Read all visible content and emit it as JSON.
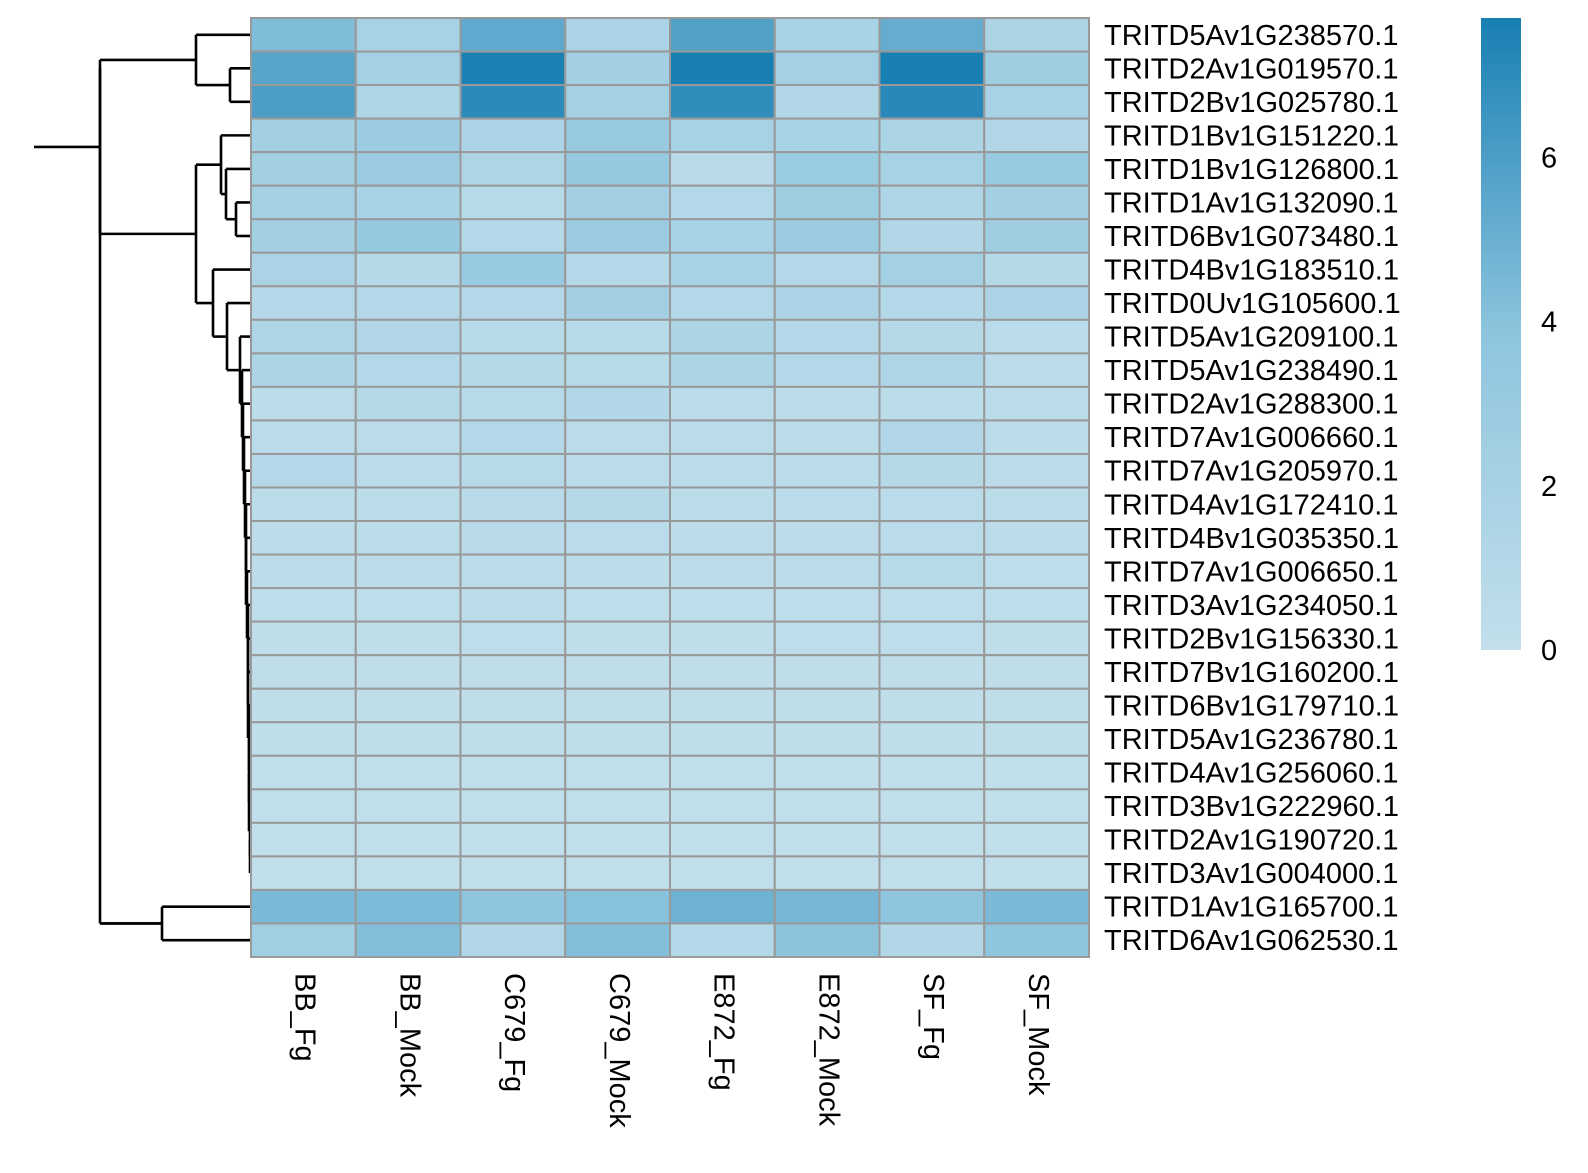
{
  "chart_data": {
    "type": "heatmap",
    "title": "",
    "xlabel": "",
    "ylabel": "",
    "columns": [
      "BB_Fg",
      "BB_Mock",
      "C679_Fg",
      "C679_Mock",
      "E872_Fg",
      "E872_Mock",
      "SF_Fg",
      "SF_Mock"
    ],
    "rows": [
      "TRITD5Av1G238570.1",
      "TRITD2Av1G019570.1",
      "TRITD2Bv1G025780.1",
      "TRITD1Bv1G151220.1",
      "TRITD1Bv1G126800.1",
      "TRITD1Av1G132090.1",
      "TRITD6Bv1G073480.1",
      "TRITD4Bv1G183510.1",
      "TRITD0Uv1G105600.1",
      "TRITD5Av1G209100.1",
      "TRITD5Av1G238490.1",
      "TRITD2Av1G288300.1",
      "TRITD7Av1G006660.1",
      "TRITD7Av1G205970.1",
      "TRITD4Av1G172410.1",
      "TRITD4Bv1G035350.1",
      "TRITD7Av1G006650.1",
      "TRITD3Av1G234050.1",
      "TRITD2Bv1G156330.1",
      "TRITD7Bv1G160200.1",
      "TRITD6Bv1G179710.1",
      "TRITD5Av1G236780.1",
      "TRITD4Av1G256060.1",
      "TRITD3Bv1G222960.1",
      "TRITD2Av1G190720.1",
      "TRITD3Av1G004000.1",
      "TRITD1Av1G165700.1",
      "TRITD6Av1G062530.1"
    ],
    "values": [
      [
        4.3,
        2.0,
        5.4,
        1.8,
        5.8,
        1.9,
        5.2,
        1.7
      ],
      [
        5.6,
        2.2,
        7.6,
        2.3,
        7.7,
        2.2,
        7.7,
        2.6
      ],
      [
        6.0,
        1.4,
        7.1,
        2.2,
        6.9,
        1.2,
        7.2,
        2.0
      ],
      [
        2.4,
        2.8,
        1.6,
        3.2,
        2.0,
        1.9,
        1.7,
        1.3
      ],
      [
        2.3,
        2.9,
        1.5,
        3.3,
        0.7,
        3.0,
        2.0,
        3.1
      ],
      [
        2.2,
        1.9,
        0.8,
        2.4,
        1.1,
        2.7,
        1.4,
        2.4
      ],
      [
        2.3,
        3.3,
        1.0,
        2.9,
        1.9,
        2.8,
        1.2,
        2.6
      ],
      [
        1.8,
        0.9,
        3.1,
        1.0,
        2.0,
        1.0,
        2.2,
        0.9
      ],
      [
        1.0,
        1.0,
        1.0,
        2.3,
        1.1,
        1.6,
        1.1,
        1.6
      ],
      [
        1.4,
        1.3,
        0.8,
        0.8,
        1.7,
        1.0,
        0.9,
        0.6
      ],
      [
        1.7,
        1.0,
        0.9,
        0.8,
        1.7,
        1.0,
        1.4,
        0.6
      ],
      [
        0.5,
        0.9,
        0.8,
        1.2,
        0.6,
        0.5,
        0.5,
        0.5
      ],
      [
        0.6,
        0.6,
        1.0,
        0.6,
        0.6,
        0.5,
        1.3,
        0.4
      ],
      [
        1.0,
        0.6,
        0.8,
        0.6,
        0.6,
        0.5,
        0.9,
        0.4
      ],
      [
        0.5,
        0.5,
        0.7,
        0.9,
        0.5,
        0.6,
        0.6,
        0.5
      ],
      [
        0.4,
        0.5,
        0.7,
        0.6,
        0.4,
        0.4,
        0.6,
        0.4
      ],
      [
        0.4,
        0.4,
        0.6,
        0.5,
        0.4,
        0.5,
        0.8,
        0.3
      ],
      [
        0.3,
        0.3,
        0.4,
        0.3,
        0.3,
        0.3,
        0.3,
        0.3
      ],
      [
        0.2,
        0.2,
        0.3,
        0.2,
        0.2,
        0.3,
        0.3,
        0.2
      ],
      [
        0.2,
        0.2,
        0.2,
        0.2,
        0.2,
        0.2,
        0.2,
        0.2
      ],
      [
        0.2,
        0.2,
        0.2,
        0.2,
        0.2,
        0.2,
        0.2,
        0.2
      ],
      [
        0.2,
        0.2,
        0.2,
        0.2,
        0.2,
        0.2,
        0.2,
        0.2
      ],
      [
        0.1,
        0.1,
        0.1,
        0.1,
        0.1,
        0.1,
        0.1,
        0.1
      ],
      [
        0.1,
        0.1,
        0.1,
        0.1,
        0.1,
        0.1,
        0.1,
        0.1
      ],
      [
        0.1,
        0.1,
        0.1,
        0.1,
        0.1,
        0.1,
        0.1,
        0.1
      ],
      [
        0.1,
        0.1,
        0.1,
        0.1,
        0.1,
        0.1,
        0.1,
        0.1
      ],
      [
        4.5,
        4.4,
        3.8,
        4.0,
        4.9,
        4.6,
        3.8,
        4.5
      ],
      [
        2.5,
        4.2,
        1.3,
        4.2,
        1.1,
        3.9,
        1.2,
        3.8
      ]
    ],
    "color_scale": {
      "min": 0,
      "max": 7.7,
      "low_color": "#c2dfeb",
      "mid_color": "#8ec5de",
      "high_color": "#187fb3",
      "ticks": [
        "0",
        "2",
        "4",
        "6"
      ]
    },
    "legend_position": "top-right",
    "grid_color": "#999999",
    "row_dendrogram": true,
    "column_dendrogram": false
  }
}
